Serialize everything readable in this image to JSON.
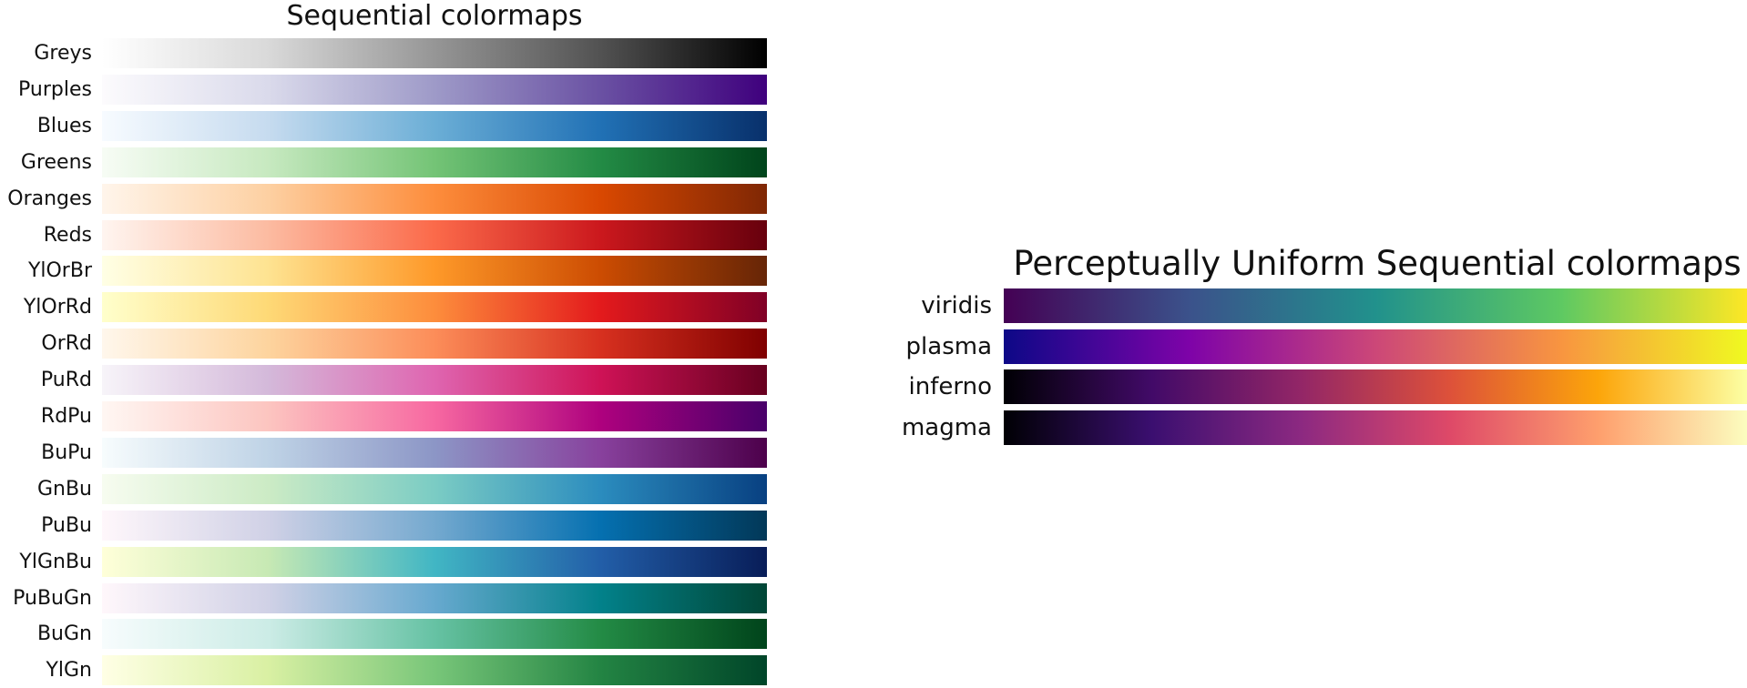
{
  "chart_data": [
    {
      "type": "heatmap",
      "title": "Sequential colormaps",
      "colormaps": [
        {
          "name": "Greys",
          "stops": [
            "#ffffff",
            "#d9d9d9",
            "#969696",
            "#525252",
            "#000000"
          ]
        },
        {
          "name": "Purples",
          "stops": [
            "#fcfbfd",
            "#dadaeb",
            "#9e9ac8",
            "#6a51a3",
            "#3f007d"
          ]
        },
        {
          "name": "Blues",
          "stops": [
            "#f7fbff",
            "#c6dbef",
            "#6baed6",
            "#2171b5",
            "#08306b"
          ]
        },
        {
          "name": "Greens",
          "stops": [
            "#f7fcf5",
            "#c7e9c0",
            "#74c476",
            "#238b45",
            "#00441b"
          ]
        },
        {
          "name": "Oranges",
          "stops": [
            "#fff5eb",
            "#fdd0a2",
            "#fd8d3c",
            "#d94801",
            "#7f2704"
          ]
        },
        {
          "name": "Reds",
          "stops": [
            "#fff5f0",
            "#fcbba1",
            "#fb6a4a",
            "#cb181d",
            "#67000d"
          ]
        },
        {
          "name": "YlOrBr",
          "stops": [
            "#ffffe5",
            "#fee391",
            "#fe9929",
            "#cc4c02",
            "#662506"
          ]
        },
        {
          "name": "YlOrRd",
          "stops": [
            "#ffffcc",
            "#fed976",
            "#fd8d3c",
            "#e31a1c",
            "#800026"
          ]
        },
        {
          "name": "OrRd",
          "stops": [
            "#fff7ec",
            "#fdd49e",
            "#fc8d59",
            "#d7301f",
            "#7f0000"
          ]
        },
        {
          "name": "PuRd",
          "stops": [
            "#f7f4f9",
            "#d4b9da",
            "#df65b0",
            "#ce1256",
            "#67001f"
          ]
        },
        {
          "name": "RdPu",
          "stops": [
            "#fff7f3",
            "#fcc5c0",
            "#f768a1",
            "#ae017e",
            "#49006a"
          ]
        },
        {
          "name": "BuPu",
          "stops": [
            "#f7fcfd",
            "#bfd3e6",
            "#8c96c6",
            "#88419d",
            "#4d004b"
          ]
        },
        {
          "name": "GnBu",
          "stops": [
            "#f7fcf0",
            "#ccebc5",
            "#7bccc4",
            "#2b8cbe",
            "#084081"
          ]
        },
        {
          "name": "PuBu",
          "stops": [
            "#fff7fb",
            "#d0d1e6",
            "#74a9cf",
            "#0570b0",
            "#023858"
          ]
        },
        {
          "name": "YlGnBu",
          "stops": [
            "#ffffd9",
            "#c7e9b4",
            "#41b6c4",
            "#225ea8",
            "#081d58"
          ]
        },
        {
          "name": "PuBuGn",
          "stops": [
            "#fff7fb",
            "#d0d1e6",
            "#67a9cf",
            "#02818a",
            "#014636"
          ]
        },
        {
          "name": "BuGn",
          "stops": [
            "#f7fcfd",
            "#ccece6",
            "#66c2a4",
            "#238b45",
            "#00441b"
          ]
        },
        {
          "name": "YlGn",
          "stops": [
            "#ffffe5",
            "#d9f0a3",
            "#78c679",
            "#238443",
            "#004529"
          ]
        }
      ]
    },
    {
      "type": "heatmap",
      "title": "Perceptually Uniform Sequential colormaps",
      "colormaps": [
        {
          "name": "viridis",
          "stops": [
            "#440154",
            "#3b528b",
            "#21918c",
            "#5ec962",
            "#fde725"
          ]
        },
        {
          "name": "plasma",
          "stops": [
            "#0d0887",
            "#7e03a8",
            "#cc4778",
            "#f89540",
            "#f0f921"
          ]
        },
        {
          "name": "inferno",
          "stops": [
            "#000004",
            "#420a68",
            "#932667",
            "#dd513a",
            "#fca50a",
            "#fcffa4"
          ]
        },
        {
          "name": "magma",
          "stops": [
            "#000004",
            "#3b0f70",
            "#8c2981",
            "#de4968",
            "#fe9f6d",
            "#fcfdbf"
          ]
        }
      ]
    }
  ]
}
